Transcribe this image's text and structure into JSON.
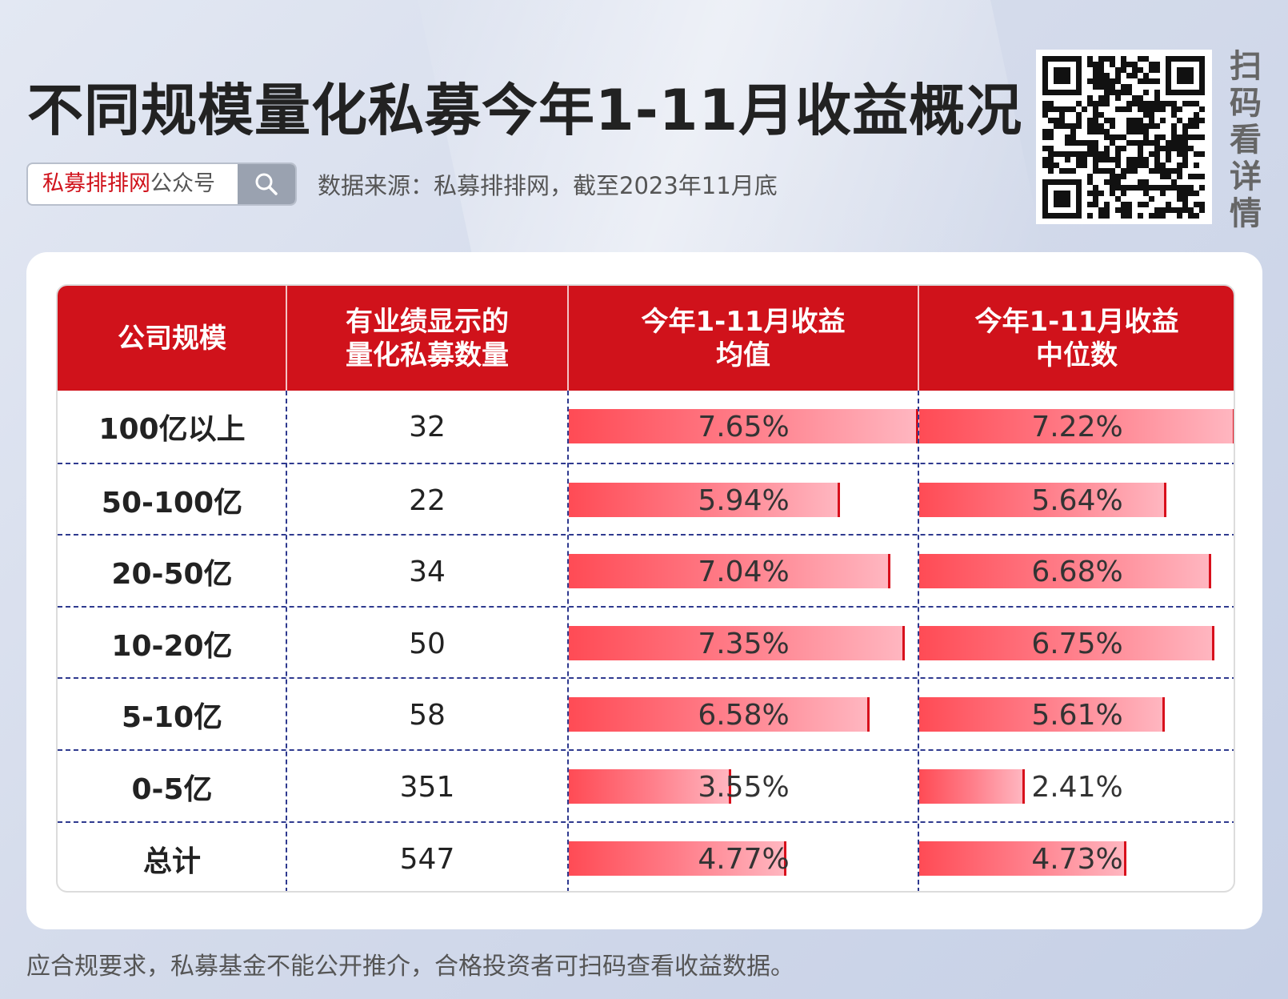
{
  "title": "不同规模量化私募今年1-11月收益概况",
  "search": {
    "brand": "私募排排网",
    "suffix": "公众号"
  },
  "source": "数据来源：私募排排网，截至2023年11月底",
  "qr_side_text": [
    "扫",
    "码",
    "看",
    "详",
    "情"
  ],
  "watermark": "私募排排网",
  "footer": "应合规要求，私募基金不能公开推介，合格投资者可扫码查看收益数据。",
  "colors": {
    "header_red": "#d0121b",
    "bar_start": "#ff4b55",
    "bar_end": "#ffb6c0",
    "divider": "#2f3a8f"
  },
  "table": {
    "headers": [
      {
        "line1": "公司规模",
        "line2": ""
      },
      {
        "line1": "有业绩显示的",
        "line2": "量化私募数量"
      },
      {
        "line1": "今年1-11月收益",
        "line2": "均值"
      },
      {
        "line1": "今年1-11月收益",
        "line2": "中位数"
      }
    ]
  },
  "chart_data": {
    "type": "table",
    "columns": [
      "公司规模",
      "有业绩显示的量化私募数量",
      "今年1-11月收益均值",
      "今年1-11月收益中位数"
    ],
    "rows": [
      {
        "scale": "100亿以上",
        "count": "32",
        "mean": 7.65,
        "mean_label": "7.65%",
        "median": 7.22,
        "median_label": "7.22%"
      },
      {
        "scale": "50-100亿",
        "count": "22",
        "mean": 5.94,
        "mean_label": "5.94%",
        "median": 5.64,
        "median_label": "5.64%"
      },
      {
        "scale": "20-50亿",
        "count": "34",
        "mean": 7.04,
        "mean_label": "7.04%",
        "median": 6.68,
        "median_label": "6.68%"
      },
      {
        "scale": "10-20亿",
        "count": "50",
        "mean": 7.35,
        "mean_label": "7.35%",
        "median": 6.75,
        "median_label": "6.75%"
      },
      {
        "scale": "5-10亿",
        "count": "58",
        "mean": 6.58,
        "mean_label": "6.58%",
        "median": 5.61,
        "median_label": "5.61%"
      },
      {
        "scale": "0-5亿",
        "count": "351",
        "mean": 3.55,
        "mean_label": "3.55%",
        "median": 2.41,
        "median_label": "2.41%"
      },
      {
        "scale": "总计",
        "count": "547",
        "mean": 4.77,
        "mean_label": "4.77%",
        "median": 4.73,
        "median_label": "4.73%"
      }
    ],
    "mean_max": 7.65,
    "median_max": 7.22
  }
}
